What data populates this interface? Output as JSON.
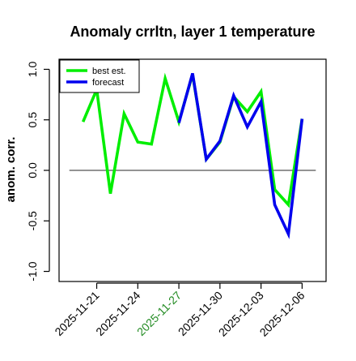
{
  "chart_data": {
    "type": "line",
    "title": "Anomaly crrltn, layer 1 temperature",
    "xlabel": "",
    "ylabel": "anom. corr.",
    "ylim": [
      -1.1,
      1.1
    ],
    "yticks": [
      -1.0,
      -0.5,
      0.0,
      0.5,
      1.0
    ],
    "ytick_labels": [
      "-1.0",
      "-0.5",
      "0.0",
      "0.5",
      "1.0"
    ],
    "xticks": [
      {
        "date": "2025-11-21",
        "label": "2025-11-21",
        "color": "#000000"
      },
      {
        "date": "2025-11-24",
        "label": "2025-11-24",
        "color": "#000000"
      },
      {
        "date": "2025-11-27",
        "label": "2025-11-27",
        "color": "#228B22"
      },
      {
        "date": "2025-11-30",
        "label": "2025-11-30",
        "color": "#000000"
      },
      {
        "date": "2025-12-03",
        "label": "2025-12-03",
        "color": "#000000"
      },
      {
        "date": "2025-12-06",
        "label": "2025-12-06",
        "color": "#000000"
      }
    ],
    "xlim": [
      "2025-11-18 06:00",
      "2025-12-07 18:00"
    ],
    "reference_line": {
      "y": 0.0,
      "xfrom": "2025-11-19",
      "xto": "2025-12-07",
      "color": "#555555"
    },
    "legend": {
      "placement": "top-left"
    },
    "series": [
      {
        "name": "best est.",
        "color": "#00EE00",
        "dates": [
          "2025-11-20",
          "2025-11-21",
          "2025-11-22",
          "2025-11-23",
          "2025-11-24",
          "2025-11-25",
          "2025-11-26",
          "2025-11-27",
          "2025-11-28",
          "2025-11-29",
          "2025-11-30",
          "2025-12-01",
          "2025-12-02",
          "2025-12-03",
          "2025-12-04",
          "2025-12-05",
          "2025-12-06"
        ],
        "values": [
          0.48,
          0.8,
          -0.23,
          0.56,
          0.28,
          0.26,
          0.91,
          0.48,
          0.95,
          0.11,
          0.28,
          0.73,
          0.58,
          0.78,
          -0.19,
          -0.34,
          0.51
        ]
      },
      {
        "name": "forecast",
        "color": "#0000EE",
        "dates": [
          "2025-11-27",
          "2025-11-28",
          "2025-11-29",
          "2025-11-30",
          "2025-12-01",
          "2025-12-02",
          "2025-12-03",
          "2025-12-04",
          "2025-12-05",
          "2025-12-06"
        ],
        "values": [
          0.47,
          0.96,
          0.11,
          0.29,
          0.74,
          0.43,
          0.68,
          -0.34,
          -0.63,
          0.51
        ]
      }
    ]
  }
}
